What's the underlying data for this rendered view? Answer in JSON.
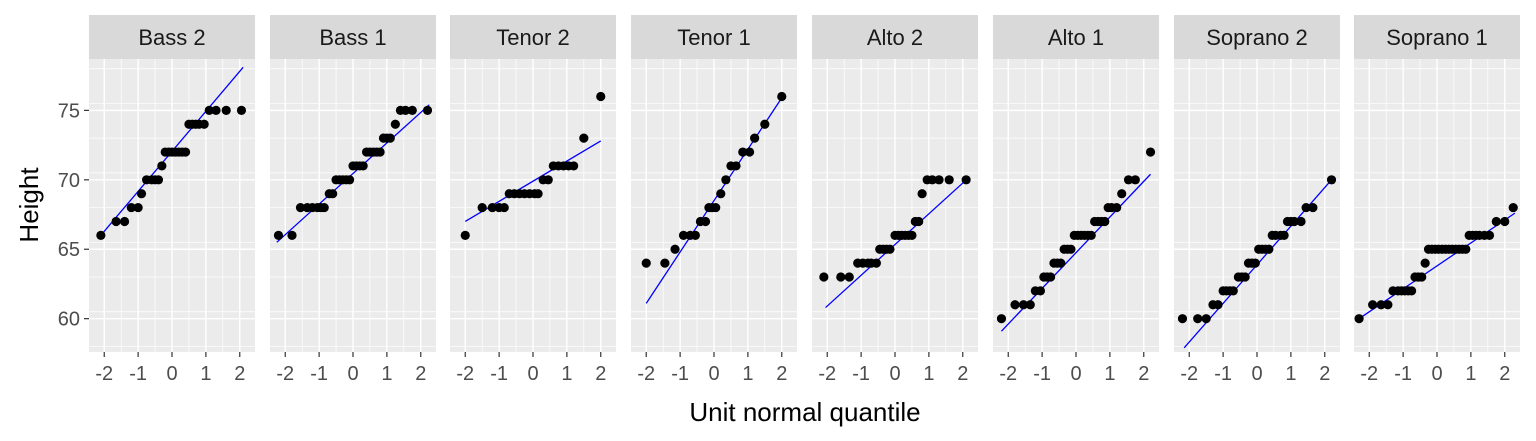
{
  "chart_data": {
    "type": "scatter",
    "subtype": "qq-plot-faceted",
    "title": "",
    "xlabel": "Unit normal quantile",
    "ylabel": "Height",
    "xlim": [
      -2.45,
      2.45
    ],
    "ylim": [
      57.6,
      78.7
    ],
    "x_ticks": [
      -2,
      -1,
      0,
      1,
      2
    ],
    "x_tick_labels": [
      "-2",
      "-1",
      "0",
      "1",
      "2"
    ],
    "y_ticks": [
      60,
      65,
      70,
      75
    ],
    "y_tick_labels": [
      "60",
      "65",
      "70",
      "75"
    ],
    "grid": true,
    "panel_background": "#ebebeb",
    "strip_background": "#d9d9d9",
    "point_color": "#000000",
    "line_color": "#0000ff",
    "facets": [
      {
        "label": "Bass 2",
        "line": {
          "x": [
            -2.1,
            2.1
          ],
          "y": [
            66.0,
            78.1
          ]
        },
        "points": [
          [
            -2.1,
            66
          ],
          [
            -1.65,
            67
          ],
          [
            -1.4,
            67
          ],
          [
            -1.2,
            68
          ],
          [
            -1.0,
            68
          ],
          [
            -0.9,
            69
          ],
          [
            -0.75,
            70
          ],
          [
            -0.6,
            70
          ],
          [
            -0.5,
            70
          ],
          [
            -0.4,
            70
          ],
          [
            -0.3,
            71
          ],
          [
            -0.2,
            72
          ],
          [
            -0.1,
            72
          ],
          [
            0.0,
            72
          ],
          [
            0.1,
            72
          ],
          [
            0.2,
            72
          ],
          [
            0.3,
            72
          ],
          [
            0.4,
            72
          ],
          [
            0.5,
            74
          ],
          [
            0.6,
            74
          ],
          [
            0.7,
            74
          ],
          [
            0.8,
            74
          ],
          [
            0.95,
            74
          ],
          [
            1.1,
            75
          ],
          [
            1.3,
            75
          ],
          [
            1.6,
            75
          ],
          [
            2.05,
            75
          ]
        ]
      },
      {
        "label": "Bass 1",
        "line": {
          "x": [
            -2.25,
            2.25
          ],
          "y": [
            65.5,
            75.4
          ]
        },
        "points": [
          [
            -2.2,
            66
          ],
          [
            -1.8,
            66
          ],
          [
            -1.55,
            68
          ],
          [
            -1.35,
            68
          ],
          [
            -1.2,
            68
          ],
          [
            -1.05,
            68
          ],
          [
            -0.95,
            68
          ],
          [
            -0.85,
            68
          ],
          [
            -0.7,
            69
          ],
          [
            -0.6,
            69
          ],
          [
            -0.5,
            70
          ],
          [
            -0.4,
            70
          ],
          [
            -0.3,
            70
          ],
          [
            -0.2,
            70
          ],
          [
            -0.1,
            70
          ],
          [
            0.0,
            71
          ],
          [
            0.1,
            71
          ],
          [
            0.2,
            71
          ],
          [
            0.3,
            71
          ],
          [
            0.4,
            72
          ],
          [
            0.5,
            72
          ],
          [
            0.6,
            72
          ],
          [
            0.7,
            72
          ],
          [
            0.8,
            72
          ],
          [
            0.9,
            73
          ],
          [
            1.0,
            73
          ],
          [
            1.1,
            73
          ],
          [
            1.25,
            74
          ],
          [
            1.4,
            75
          ],
          [
            1.55,
            75
          ],
          [
            1.75,
            75
          ],
          [
            2.2,
            75
          ]
        ]
      },
      {
        "label": "Tenor 2",
        "line": {
          "x": [
            -2.0,
            2.0
          ],
          "y": [
            67.0,
            72.8
          ]
        },
        "points": [
          [
            -2.0,
            66
          ],
          [
            -1.5,
            68
          ],
          [
            -1.2,
            68
          ],
          [
            -1.0,
            68
          ],
          [
            -0.85,
            68
          ],
          [
            -0.7,
            69
          ],
          [
            -0.55,
            69
          ],
          [
            -0.4,
            69
          ],
          [
            -0.25,
            69
          ],
          [
            -0.1,
            69
          ],
          [
            0.05,
            69
          ],
          [
            0.15,
            69
          ],
          [
            0.3,
            70
          ],
          [
            0.45,
            70
          ],
          [
            0.6,
            71
          ],
          [
            0.75,
            71
          ],
          [
            0.9,
            71
          ],
          [
            1.05,
            71
          ],
          [
            1.2,
            71
          ],
          [
            1.5,
            73
          ],
          [
            2.0,
            76
          ]
        ]
      },
      {
        "label": "Tenor 1",
        "line": {
          "x": [
            -2.0,
            2.0
          ],
          "y": [
            61.1,
            75.9
          ]
        },
        "points": [
          [
            -2.0,
            64
          ],
          [
            -1.45,
            64
          ],
          [
            -1.15,
            65
          ],
          [
            -0.9,
            66
          ],
          [
            -0.7,
            66
          ],
          [
            -0.55,
            66
          ],
          [
            -0.4,
            67
          ],
          [
            -0.25,
            67
          ],
          [
            -0.15,
            68
          ],
          [
            -0.05,
            68
          ],
          [
            0.05,
            68
          ],
          [
            0.2,
            69
          ],
          [
            0.35,
            70
          ],
          [
            0.5,
            71
          ],
          [
            0.65,
            71
          ],
          [
            0.85,
            72
          ],
          [
            1.05,
            72
          ],
          [
            1.2,
            73
          ],
          [
            1.5,
            74
          ],
          [
            2.0,
            76
          ]
        ]
      },
      {
        "label": "Alto 2",
        "line": {
          "x": [
            -2.05,
            2.15
          ],
          "y": [
            60.8,
            70.1
          ]
        },
        "points": [
          [
            -2.1,
            63
          ],
          [
            -1.6,
            63
          ],
          [
            -1.35,
            63
          ],
          [
            -1.1,
            64
          ],
          [
            -0.95,
            64
          ],
          [
            -0.8,
            64
          ],
          [
            -0.7,
            64
          ],
          [
            -0.55,
            64
          ],
          [
            -0.45,
            65
          ],
          [
            -0.35,
            65
          ],
          [
            -0.25,
            65
          ],
          [
            -0.15,
            65
          ],
          [
            0.0,
            66
          ],
          [
            0.1,
            66
          ],
          [
            0.2,
            66
          ],
          [
            0.3,
            66
          ],
          [
            0.4,
            66
          ],
          [
            0.5,
            66
          ],
          [
            0.6,
            67
          ],
          [
            0.7,
            67
          ],
          [
            0.8,
            69
          ],
          [
            0.95,
            70
          ],
          [
            1.1,
            70
          ],
          [
            1.3,
            70
          ],
          [
            1.6,
            70
          ],
          [
            2.1,
            70
          ]
        ]
      },
      {
        "label": "Alto 1",
        "line": {
          "x": [
            -2.2,
            2.2
          ],
          "y": [
            59.1,
            70.4
          ]
        },
        "points": [
          [
            -2.2,
            60
          ],
          [
            -1.8,
            61
          ],
          [
            -1.55,
            61
          ],
          [
            -1.35,
            61
          ],
          [
            -1.2,
            62
          ],
          [
            -1.05,
            62
          ],
          [
            -0.95,
            63
          ],
          [
            -0.85,
            63
          ],
          [
            -0.75,
            63
          ],
          [
            -0.65,
            64
          ],
          [
            -0.55,
            64
          ],
          [
            -0.45,
            64
          ],
          [
            -0.35,
            65
          ],
          [
            -0.25,
            65
          ],
          [
            -0.15,
            65
          ],
          [
            -0.05,
            66
          ],
          [
            0.05,
            66
          ],
          [
            0.15,
            66
          ],
          [
            0.25,
            66
          ],
          [
            0.35,
            66
          ],
          [
            0.45,
            66
          ],
          [
            0.55,
            67
          ],
          [
            0.65,
            67
          ],
          [
            0.75,
            67
          ],
          [
            0.85,
            67
          ],
          [
            0.95,
            68
          ],
          [
            1.05,
            68
          ],
          [
            1.2,
            68
          ],
          [
            1.35,
            69
          ],
          [
            1.55,
            70
          ],
          [
            1.75,
            70
          ],
          [
            2.2,
            72
          ]
        ]
      },
      {
        "label": "Soprano 2",
        "line": {
          "x": [
            -2.15,
            2.2
          ],
          "y": [
            57.9,
            70.0
          ]
        },
        "points": [
          [
            -2.2,
            60
          ],
          [
            -1.75,
            60
          ],
          [
            -1.5,
            60
          ],
          [
            -1.3,
            61
          ],
          [
            -1.15,
            61
          ],
          [
            -1.0,
            62
          ],
          [
            -0.9,
            62
          ],
          [
            -0.8,
            62
          ],
          [
            -0.7,
            62
          ],
          [
            -0.55,
            63
          ],
          [
            -0.45,
            63
          ],
          [
            -0.35,
            63
          ],
          [
            -0.25,
            64
          ],
          [
            -0.15,
            64
          ],
          [
            -0.05,
            64
          ],
          [
            0.05,
            65
          ],
          [
            0.15,
            65
          ],
          [
            0.25,
            65
          ],
          [
            0.35,
            65
          ],
          [
            0.45,
            66
          ],
          [
            0.55,
            66
          ],
          [
            0.7,
            66
          ],
          [
            0.8,
            66
          ],
          [
            0.9,
            67
          ],
          [
            1.0,
            67
          ],
          [
            1.1,
            67
          ],
          [
            1.3,
            67
          ],
          [
            1.45,
            68
          ],
          [
            1.65,
            68
          ],
          [
            2.2,
            70
          ]
        ]
      },
      {
        "label": "Soprano 1",
        "line": {
          "x": [
            -2.3,
            2.3
          ],
          "y": [
            60.0,
            67.6
          ]
        },
        "points": [
          [
            -2.3,
            60
          ],
          [
            -1.9,
            61
          ],
          [
            -1.65,
            61
          ],
          [
            -1.45,
            61
          ],
          [
            -1.3,
            62
          ],
          [
            -1.15,
            62
          ],
          [
            -1.05,
            62
          ],
          [
            -0.95,
            62
          ],
          [
            -0.85,
            62
          ],
          [
            -0.75,
            62
          ],
          [
            -0.65,
            63
          ],
          [
            -0.55,
            63
          ],
          [
            -0.45,
            63
          ],
          [
            -0.35,
            64
          ],
          [
            -0.25,
            65
          ],
          [
            -0.15,
            65
          ],
          [
            -0.05,
            65
          ],
          [
            0.05,
            65
          ],
          [
            0.15,
            65
          ],
          [
            0.25,
            65
          ],
          [
            0.35,
            65
          ],
          [
            0.45,
            65
          ],
          [
            0.55,
            65
          ],
          [
            0.65,
            65
          ],
          [
            0.75,
            65
          ],
          [
            0.85,
            65
          ],
          [
            0.95,
            66
          ],
          [
            1.05,
            66
          ],
          [
            1.15,
            66
          ],
          [
            1.25,
            66
          ],
          [
            1.4,
            66
          ],
          [
            1.55,
            66
          ],
          [
            1.75,
            67
          ],
          [
            2.0,
            67
          ],
          [
            2.25,
            68
          ]
        ]
      }
    ]
  }
}
